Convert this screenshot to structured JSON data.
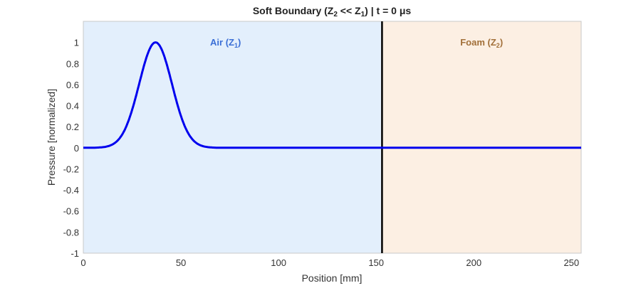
{
  "chart_data": {
    "type": "line",
    "title_parts": {
      "a": "Soft  Boundary  (Z",
      "sub1": "2",
      "b": "  <<  Z",
      "sub2": "1",
      "c": ")  |  t  =  0  μs"
    },
    "title": "Soft Boundary (Z2 << Z1) | t = 0 μs",
    "xlabel": "Position [mm]",
    "ylabel": "Pressure [normalized]",
    "xlim": [
      0,
      255
    ],
    "ylim": [
      -1,
      1.2
    ],
    "xticks": [
      0,
      50,
      100,
      150,
      200,
      250
    ],
    "yticks": [
      1,
      0.8,
      0.6,
      0.4,
      0.2,
      0,
      -0.2,
      -0.4,
      -0.6,
      -0.8,
      -1
    ],
    "boundary_x": 153,
    "regions": [
      {
        "name": "Air",
        "sub": "1",
        "label": "Air  (Z",
        "x_range": [
          0,
          153
        ],
        "fill": "#e3effc",
        "text_color": "#3b6fd6"
      },
      {
        "name": "Foam",
        "sub": "2",
        "label": "Foam  (Z",
        "x_range": [
          153,
          255
        ],
        "fill": "#fcefe3",
        "text_color": "#a2703a"
      }
    ],
    "series": [
      {
        "name": "pressure",
        "shape": "gaussian",
        "center": 37,
        "sigma": 8.4,
        "amplitude": 1.0,
        "color": "#0000ee"
      }
    ]
  }
}
